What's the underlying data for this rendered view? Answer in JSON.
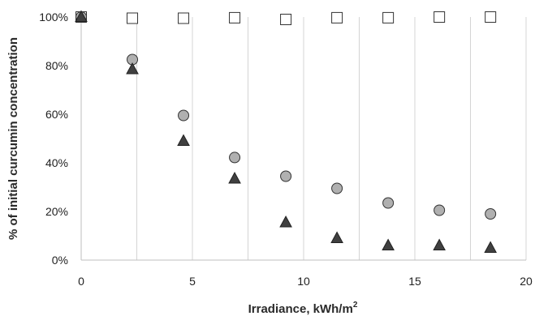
{
  "chart_data": {
    "type": "scatter",
    "title": "",
    "xlabel": "Irradiance, kWh/m",
    "xlabel_superscript": "2",
    "ylabel": "% of initial curcumin concentration",
    "xlim": [
      0,
      20
    ],
    "ylim": [
      0,
      1
    ],
    "x_ticks": [
      "0",
      "5",
      "10",
      "15",
      "20"
    ],
    "y_ticks": [
      "0%",
      "20%",
      "40%",
      "60%",
      "80%",
      "100%"
    ],
    "grid": "vertical",
    "legend": "none",
    "series": [
      {
        "marker": "square",
        "fill": "#ffffff",
        "stroke": "#333333",
        "x": [
          0,
          2.3,
          4.6,
          6.9,
          9.2,
          11.5,
          13.8,
          16.1,
          18.4
        ],
        "y": [
          1.0,
          0.995,
          0.995,
          0.997,
          0.99,
          0.997,
          0.997,
          1.0,
          1.0
        ]
      },
      {
        "marker": "circle",
        "fill": "#b0b0b0",
        "stroke": "#333333",
        "x": [
          0,
          2.3,
          4.6,
          6.9,
          9.2,
          11.5,
          13.8,
          16.1,
          18.4
        ],
        "y": [
          1.0,
          0.825,
          0.595,
          0.422,
          0.345,
          0.295,
          0.235,
          0.205,
          0.19
        ]
      },
      {
        "marker": "triangle",
        "fill": "#404040",
        "stroke": "#222222",
        "x": [
          0,
          2.3,
          4.6,
          6.9,
          9.2,
          11.5,
          13.8,
          16.1,
          18.4
        ],
        "y": [
          1.0,
          0.785,
          0.49,
          0.335,
          0.155,
          0.09,
          0.06,
          0.06,
          0.05
        ]
      }
    ]
  }
}
